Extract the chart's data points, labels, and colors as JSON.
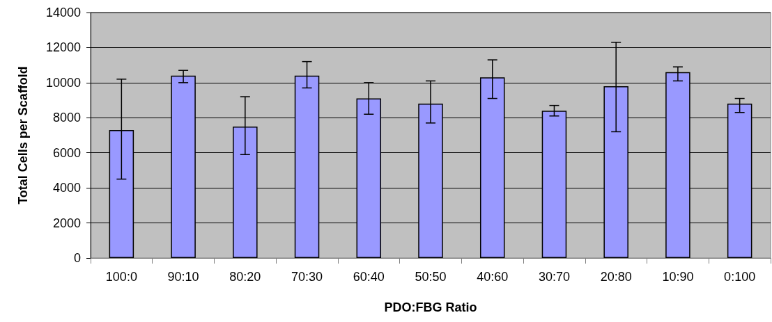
{
  "chart_data": {
    "type": "bar",
    "xlabel": "PDO:FBG Ratio",
    "ylabel": "Total Cells per Scaffold",
    "categories": [
      "100:0",
      "90:10",
      "80:20",
      "70:30",
      "60:40",
      "50:50",
      "40:60",
      "30:70",
      "20:80",
      "10:90",
      "0:100"
    ],
    "values": [
      7300,
      10400,
      7500,
      10400,
      9100,
      8800,
      10300,
      8400,
      9800,
      10600,
      8800
    ],
    "errors": [
      [
        4500,
        10200
      ],
      [
        10000,
        10700
      ],
      [
        5900,
        9200
      ],
      [
        9700,
        11200
      ],
      [
        8200,
        10000
      ],
      [
        7700,
        10100
      ],
      [
        9100,
        11300
      ],
      [
        8100,
        8700
      ],
      [
        7200,
        12300
      ],
      [
        10100,
        10900
      ],
      [
        8300,
        9100
      ]
    ],
    "color": "#9999ff",
    "ylim": [
      0,
      14000
    ],
    "yticks": [
      0,
      2000,
      4000,
      6000,
      8000,
      10000,
      12000,
      14000
    ],
    "grid": "y"
  }
}
